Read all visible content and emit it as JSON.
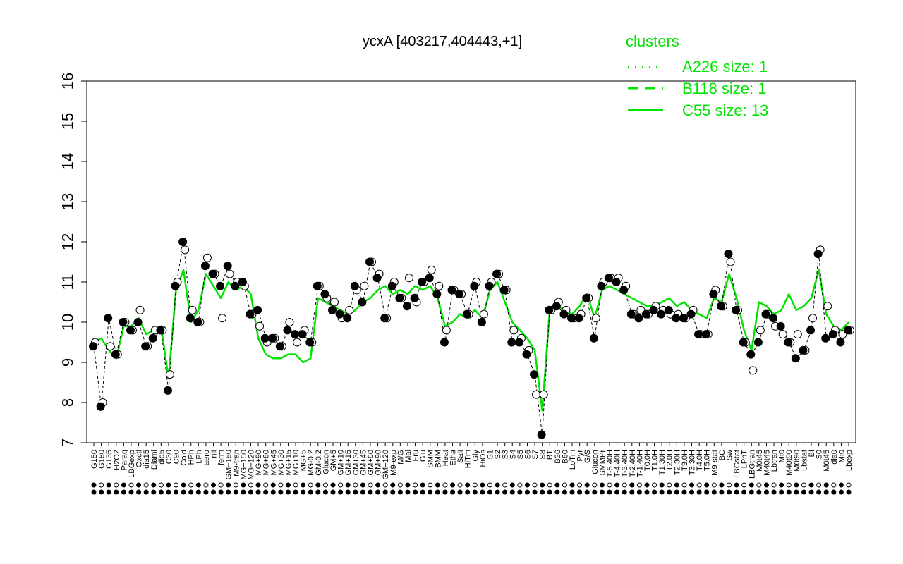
{
  "chart_data": {
    "type": "line",
    "title": "ycxA [403217,404443,+1]",
    "ylim": [
      7,
      16
    ],
    "yticks": [
      7,
      8,
      9,
      10,
      11,
      12,
      13,
      14,
      15,
      16
    ],
    "xlabel": "",
    "ylabel": "",
    "grid": false,
    "legend": {
      "title": "clusters",
      "placement": "top-right",
      "entries": [
        {
          "label": "A226 size: 1",
          "style": "dotted"
        },
        {
          "label": "B118 size: 1",
          "style": "dashed"
        },
        {
          "label": "C55 size: 13",
          "style": "solid"
        }
      ]
    },
    "x_tick_labels": [
      "G150",
      "G180",
      "G135",
      "H2O2",
      "Paraq",
      "LBGexp",
      "Oxctl",
      "dia15",
      "Diami",
      "dia5",
      "C30",
      "C90",
      "Cold",
      "HPh",
      "LPh",
      "aero",
      "nit",
      "ferm",
      "GM+150",
      "M9-tran",
      "MG+150",
      "MG+120",
      "MG+90",
      "MG+60",
      "MG+45",
      "MG+30",
      "MG+15",
      "MG+10",
      "MG+5",
      "MG-0.2",
      "GM-0.2",
      "Glucon",
      "GM+5",
      "GM+10",
      "GM+15",
      "GM+30",
      "GM+45",
      "GM+60",
      "GM+90",
      "GM+120",
      "M9-exp",
      "M/G",
      "Mal",
      "Fru",
      "Glu",
      "SMM",
      "BMM",
      "Heat",
      "Etha",
      "Salt",
      "HiTm",
      "Gly",
      "HiOs",
      "S1",
      "S2",
      "S3",
      "S4",
      "S5",
      "S6",
      "S7",
      "S8",
      "BT",
      "B36",
      "B60",
      "LoTm",
      "Pyr",
      "G/S",
      "Glucon",
      "SMMPr",
      "T-5.40H",
      "T-4.40H",
      "T-3.40H",
      "T-2.40H",
      "T-1.40H",
      "T0.0H",
      "T1.0H",
      "T1.30H",
      "T2.0H",
      "T2.30H",
      "T3.0H",
      "T3.30H",
      "T4.0H",
      "T5.0H",
      "M9-stat",
      "BC",
      "Sw",
      "LBGstat",
      "LPhT",
      "LBGtran",
      "M0t45",
      "M40t45",
      "Lbtran",
      "Mt0",
      "M40t90",
      "M0t90",
      "Lbstat",
      "BI",
      "S0",
      "M0t45",
      "dia0",
      "Mt0",
      "Lbexp"
    ],
    "series": [
      {
        "name": "",
        "style": "solid",
        "color": "#00e400",
        "values": [
          9.5,
          9.6,
          9.3,
          9.1,
          9.9,
          9.9,
          10.1,
          9.7,
          9.8,
          9.9,
          8.6,
          10.8,
          11.3,
          10.0,
          10.3,
          11.2,
          10.9,
          10.6,
          11.0,
          10.8,
          10.9,
          10.7,
          9.6,
          9.2,
          9.1,
          9.1,
          9.2,
          9.2,
          9.0,
          9.1,
          10.6,
          10.5,
          10.4,
          10.3,
          10.2,
          10.3,
          10.5,
          10.6,
          10.8,
          10.9,
          10.7,
          10.8,
          10.7,
          10.9,
          10.8,
          10.9,
          10.6,
          9.9,
          10.0,
          10.2,
          10.1,
          10.3,
          10.1,
          10.8,
          11.0,
          10.5,
          10.0,
          9.8,
          9.6,
          9.3,
          7.8,
          10.3,
          10.4,
          10.3,
          10.2,
          10.4,
          10.7,
          10.1,
          10.8,
          10.9,
          10.8,
          10.7,
          10.6,
          10.5,
          10.4,
          10.4,
          10.5,
          10.6,
          10.4,
          10.5,
          10.3,
          10.2,
          10.1,
          10.6,
          10.5,
          11.2,
          10.6,
          9.8,
          9.3,
          10.5,
          10.4,
          10.2,
          10.3,
          10.7,
          10.3,
          10.4,
          10.6,
          11.3,
          10.2,
          9.9,
          9.8,
          10.0
        ]
      }
    ],
    "points_filled": [
      9.4,
      7.9,
      10.1,
      9.2,
      10.0,
      9.8,
      10.0,
      9.4,
      9.6,
      9.8,
      8.3,
      10.9,
      12.0,
      10.1,
      10.0,
      11.4,
      11.2,
      10.9,
      11.4,
      10.9,
      11.0,
      10.2,
      10.3,
      9.6,
      9.6,
      9.4,
      9.8,
      9.7,
      9.7,
      9.5,
      10.9,
      10.7,
      10.3,
      10.2,
      10.1,
      10.9,
      10.5,
      11.5,
      11.1,
      10.1,
      10.9,
      10.6,
      10.4,
      10.6,
      11.0,
      11.1,
      10.7,
      9.5,
      10.8,
      10.7,
      10.2,
      10.9,
      10.0,
      10.9,
      11.2,
      10.8,
      9.5,
      9.5,
      9.2,
      8.7,
      7.2,
      10.3,
      10.4,
      10.2,
      10.1,
      10.1,
      10.6,
      9.6,
      10.9,
      11.1,
      11.0,
      10.8,
      10.2,
      10.1,
      10.2,
      10.3,
      10.2,
      10.3,
      10.1,
      10.1,
      10.2,
      9.7,
      9.7,
      10.7,
      10.4,
      11.7,
      10.3,
      9.5,
      9.2,
      9.5,
      10.2,
      10.1,
      9.9,
      9.5,
      9.1,
      9.3,
      9.8,
      11.7,
      9.6,
      9.7,
      9.5,
      9.8
    ],
    "points_open": [
      9.5,
      8.0,
      9.4,
      9.2,
      10.0,
      9.8,
      10.3,
      9.4,
      9.8,
      9.8,
      8.7,
      11.0,
      11.8,
      10.3,
      10.0,
      11.6,
      11.2,
      10.1,
      11.2,
      11.0,
      10.9,
      10.2,
      9.9,
      9.5,
      9.6,
      9.4,
      10.0,
      9.5,
      9.8,
      9.5,
      10.9,
      10.6,
      10.5,
      10.1,
      10.3,
      10.8,
      10.9,
      11.5,
      11.2,
      10.1,
      11.0,
      10.6,
      11.1,
      10.5,
      11.0,
      11.3,
      10.9,
      9.8,
      10.8,
      10.7,
      10.2,
      11.0,
      10.2,
      11.0,
      11.2,
      10.8,
      9.8,
      9.6,
      9.3,
      8.2,
      8.2,
      10.3,
      10.5,
      10.3,
      10.1,
      10.2,
      10.6,
      10.1,
      11.0,
      11.1,
      11.1,
      10.9,
      10.2,
      10.3,
      10.2,
      10.4,
      10.3,
      10.2,
      10.2,
      10.1,
      10.3,
      9.7,
      9.7,
      10.8,
      10.4,
      11.5,
      10.3,
      9.5,
      8.8,
      9.8,
      10.2,
      9.9,
      9.7,
      9.5,
      9.7,
      9.3,
      10.1,
      11.8,
      10.4,
      9.8,
      9.7,
      9.8
    ]
  }
}
